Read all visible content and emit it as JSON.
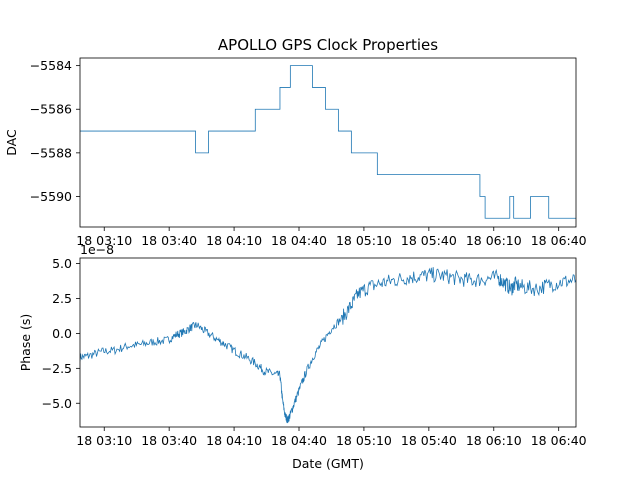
{
  "figure": {
    "title": "APOLLO GPS Clock Properties",
    "line_color": "#1f77b4"
  },
  "chart_data": [
    {
      "type": "line",
      "ylabel": "DAC",
      "xlabel": "",
      "x_unit": "hours GMT",
      "xlim": [
        2.98,
        6.8
      ],
      "ylim": [
        -5591.4,
        -5583.65
      ],
      "xticks": [
        3.1667,
        3.6667,
        4.1667,
        4.6667,
        5.1667,
        5.6667,
        6.1667,
        6.6667
      ],
      "xtick_labels": [
        "18 03:10",
        "18 03:40",
        "18 04:10",
        "18 04:40",
        "18 05:10",
        "18 05:40",
        "18 06:10",
        "18 06:40"
      ],
      "yticks": [
        -5590,
        -5588,
        -5586,
        -5584
      ],
      "ytick_labels": [
        "−5590",
        "−5588",
        "−5586",
        "−5584"
      ],
      "step": true,
      "series": [
        {
          "x": [
            2.98,
            3.87,
            3.97,
            4.33,
            4.52,
            4.6,
            4.77,
            4.87,
            4.97,
            5.07,
            5.27,
            6.06,
            6.1,
            6.29,
            6.32,
            6.45,
            6.59,
            6.8
          ],
          "values": [
            -5587,
            -5588,
            -5587,
            -5586,
            -5585,
            -5584,
            -5585,
            -5586,
            -5587,
            -5588,
            -5589,
            -5590,
            -5591,
            -5590,
            -5591,
            -5590,
            -5591,
            -5591
          ]
        }
      ]
    },
    {
      "type": "line",
      "ylabel": "Phase (s)",
      "xlabel": "Date (GMT)",
      "x_unit": "hours GMT",
      "y_offset_label": "1e−8",
      "y_scale": 1e-08,
      "xlim": [
        2.98,
        6.8
      ],
      "ylim": [
        -6.7,
        5.4
      ],
      "xticks": [
        3.1667,
        3.6667,
        4.1667,
        4.6667,
        5.1667,
        5.6667,
        6.1667,
        6.6667
      ],
      "xtick_labels": [
        "18 03:10",
        "18 03:40",
        "18 04:10",
        "18 04:40",
        "18 05:10",
        "18 05:40",
        "18 06:10",
        "18 06:40"
      ],
      "yticks": [
        -5.0,
        -2.5,
        0.0,
        2.5,
        5.0
      ],
      "ytick_labels": [
        "−5.0",
        "−2.5",
        "0.0",
        "2.5",
        "5.0"
      ],
      "series": [
        {
          "x": [
            2.98,
            3.05,
            3.15,
            3.25,
            3.35,
            3.45,
            3.55,
            3.65,
            3.72,
            3.78,
            3.83,
            3.88,
            3.95,
            4.03,
            4.1,
            4.18,
            4.26,
            4.34,
            4.4,
            4.47,
            4.52,
            4.54,
            4.56,
            4.58,
            4.6,
            4.63,
            4.67,
            4.72,
            4.78,
            4.85,
            4.92,
            5.0,
            5.07,
            5.12,
            5.2,
            5.3,
            5.4,
            5.5,
            5.6,
            5.7,
            5.8,
            5.9,
            6.0,
            6.1,
            6.2,
            6.25,
            6.3,
            6.33,
            6.4,
            6.5,
            6.6,
            6.7,
            6.8
          ],
          "values": [
            -1.7,
            -1.6,
            -1.3,
            -1.2,
            -0.9,
            -0.8,
            -0.6,
            -0.5,
            -0.1,
            0.1,
            0.4,
            0.6,
            0.1,
            -0.4,
            -0.8,
            -1.3,
            -1.7,
            -2.2,
            -2.7,
            -2.9,
            -3.0,
            -4.8,
            -5.9,
            -6.2,
            -5.8,
            -5.0,
            -4.0,
            -2.8,
            -1.6,
            -0.6,
            0.4,
            1.1,
            2.0,
            2.8,
            3.3,
            3.6,
            3.8,
            4.0,
            4.1,
            4.2,
            4.1,
            3.9,
            3.8,
            3.9,
            4.0,
            3.6,
            3.2,
            3.5,
            3.3,
            3.2,
            3.5,
            3.7,
            3.8
          ]
        }
      ]
    }
  ]
}
